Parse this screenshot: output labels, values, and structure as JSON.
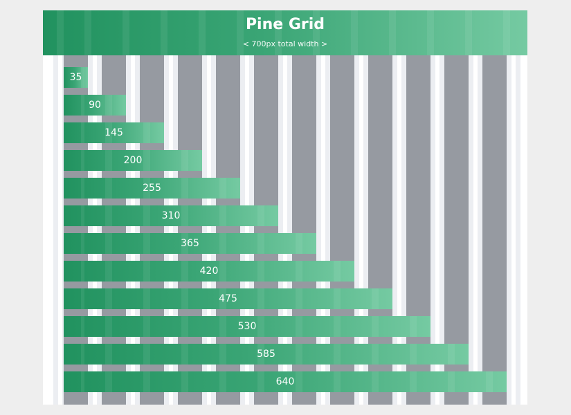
{
  "header": {
    "title": "Pine Grid",
    "subtitle": "< 700px total width >"
  },
  "colors": {
    "bar_start": "#21925f",
    "bar_end": "#75caa2",
    "column": "#969aa1",
    "gutter": "#eceef2",
    "background": "#eeeeee"
  },
  "grid": {
    "column_count": 12
  },
  "bars": [
    {
      "label": "35"
    },
    {
      "label": "90"
    },
    {
      "label": "145"
    },
    {
      "label": "200"
    },
    {
      "label": "255"
    },
    {
      "label": "310"
    },
    {
      "label": "365"
    },
    {
      "label": "420"
    },
    {
      "label": "475"
    },
    {
      "label": "530"
    },
    {
      "label": "585"
    },
    {
      "label": "640"
    }
  ]
}
